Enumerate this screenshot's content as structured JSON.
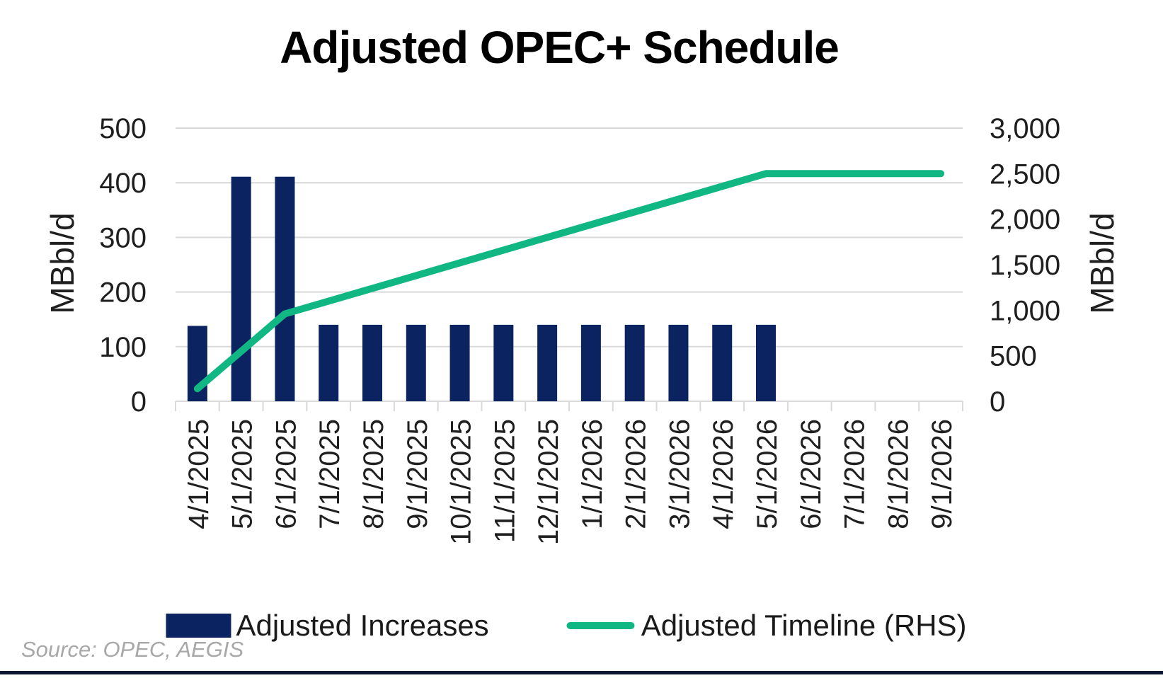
{
  "source": "Source: OPEC, AEGIS",
  "chart_data": {
    "type": "bar",
    "title": "Adjusted OPEC+ Schedule",
    "categories": [
      "4/1/2025",
      "5/1/2025",
      "6/1/2025",
      "7/1/2025",
      "8/1/2025",
      "9/1/2025",
      "10/1/2025",
      "11/1/2025",
      "12/1/2025",
      "1/1/2026",
      "2/1/2026",
      "3/1/2026",
      "4/1/2026",
      "5/1/2026",
      "6/1/2026",
      "7/1/2026",
      "8/1/2026",
      "9/1/2026"
    ],
    "series": [
      {
        "name": "Adjusted Increases",
        "type": "bar",
        "axis": "left",
        "values": [
          138,
          411,
          411,
          140,
          140,
          140,
          140,
          140,
          140,
          140,
          140,
          140,
          140,
          140,
          null,
          null,
          null,
          null
        ],
        "color": "#0b2361"
      },
      {
        "name": "Adjusted Timeline (RHS)",
        "type": "line",
        "axis": "right",
        "values": [
          138,
          549,
          960,
          1100,
          1240,
          1380,
          1520,
          1660,
          1800,
          1940,
          2080,
          2220,
          2360,
          2500,
          2500,
          2500,
          2500,
          2500
        ],
        "color": "#11b783"
      }
    ],
    "left_axis": {
      "label": "MBbl/d",
      "min": 0,
      "max": 500,
      "tick_labels": [
        "0",
        "100",
        "200",
        "300",
        "400",
        "500"
      ]
    },
    "right_axis": {
      "label": "MBbl/d",
      "min": 0,
      "max": 3000,
      "tick_labels": [
        "0",
        "500",
        "1,000",
        "1,500",
        "2,000",
        "2,500",
        "3,000"
      ]
    },
    "grid": true,
    "legend_position": "bottom",
    "colors": {
      "bar": "#0b2361",
      "line": "#11b783",
      "grid": "#d9d9d9",
      "tick_text": "#1f1f1f",
      "title_text": "#000000",
      "source_text": "#a8a8a8",
      "bottom_rule": "#0a1733"
    }
  }
}
